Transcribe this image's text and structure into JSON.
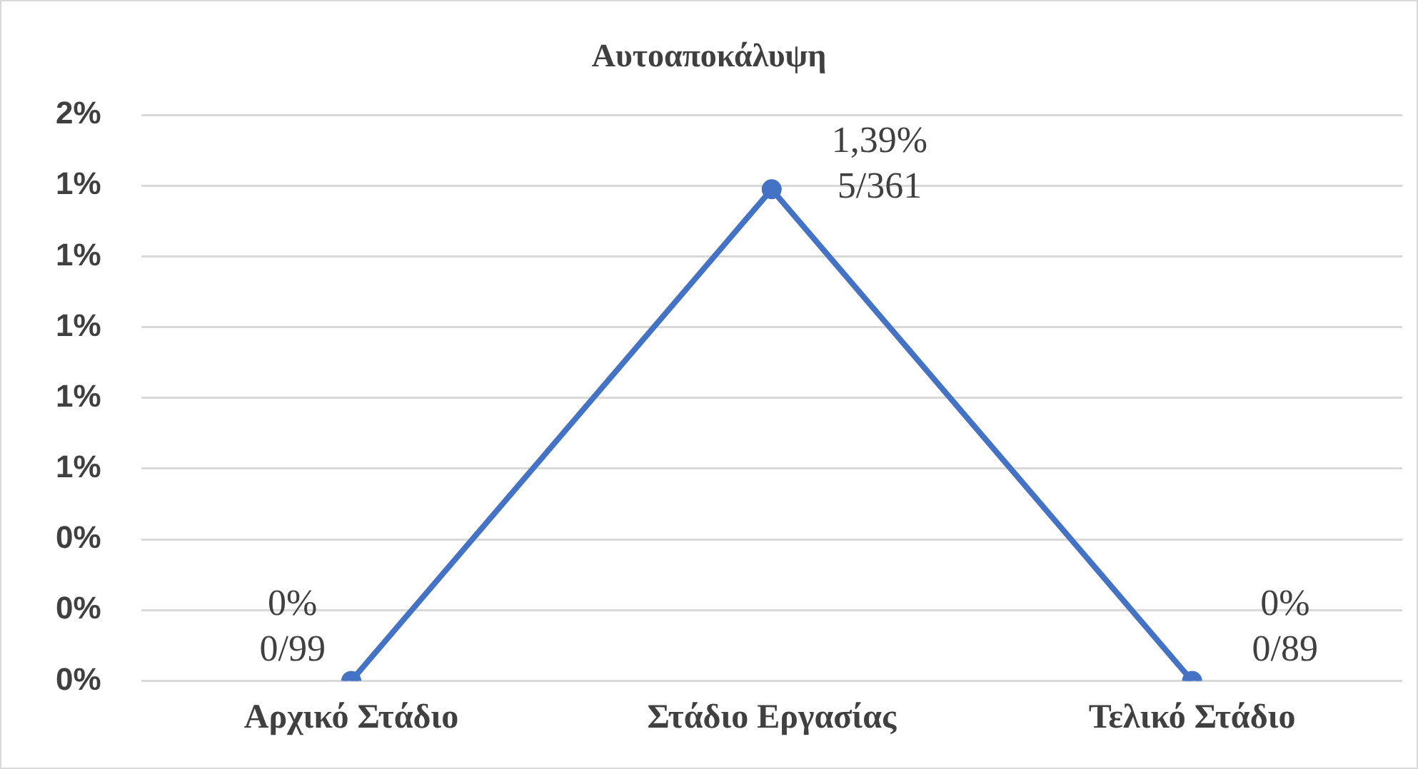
{
  "chart_data": {
    "type": "line",
    "title": "Αυτοαποκάλυψη",
    "categories": [
      "Αρχικό Στάδιο",
      "Στάδιο Εργασίας",
      "Τελικό Στάδιο"
    ],
    "values": [
      0,
      1.39,
      0
    ],
    "color": "#4472c4",
    "value_labels": [
      "0%\n0/99",
      "1,39%\n5/361",
      "0%\n0/89"
    ],
    "ylim": [
      0,
      1.6
    ],
    "yticks": [
      {
        "value": 0,
        "label": "0%"
      },
      {
        "value": 0.2,
        "label": "0%"
      },
      {
        "value": 0.4,
        "label": "0%"
      },
      {
        "value": 0.6,
        "label": "1%"
      },
      {
        "value": 0.8,
        "label": "1%"
      },
      {
        "value": 1.0,
        "label": "1%"
      },
      {
        "value": 1.2,
        "label": "1%"
      },
      {
        "value": 1.4,
        "label": "1%"
      },
      {
        "value": 1.6,
        "label": "2%"
      }
    ],
    "grid": "y",
    "marker": "circle",
    "line_style": "solid",
    "legend": false
  }
}
